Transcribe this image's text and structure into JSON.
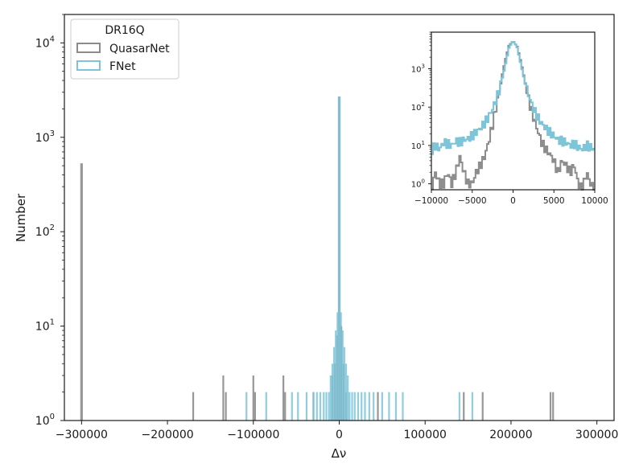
{
  "chart_data": [
    {
      "type": "histogram",
      "panel": "main",
      "xlabel": "Δν",
      "ylabel": "Number",
      "xlim": [
        -320000,
        320000
      ],
      "ylim": [
        1,
        20000
      ],
      "yscale": "log",
      "grid": false,
      "xticks": [
        -300000,
        -200000,
        -100000,
        0,
        100000,
        200000,
        300000
      ],
      "xtick_labels": [
        "−300000",
        "−200000",
        "−100000",
        "0",
        "100000",
        "200000",
        "300000"
      ],
      "yticks": [
        1,
        10,
        100,
        1000,
        10000
      ],
      "ytick_labels": [
        {
          "base": "10",
          "exp": "0"
        },
        {
          "base": "10",
          "exp": "1"
        },
        {
          "base": "10",
          "exp": "2"
        },
        {
          "base": "10",
          "exp": "3"
        },
        {
          "base": "10",
          "exp": "4"
        }
      ],
      "legend": {
        "title": "DR16Q",
        "placement": "upper left",
        "entries": [
          "QuasarNet",
          "FNet"
        ]
      },
      "series": [
        {
          "name": "QuasarNet",
          "color": "#8c8c8c",
          "bins": [
            {
              "x": -300000,
              "count": 530
            },
            {
              "x": -170000,
              "count": 2
            },
            {
              "x": -135000,
              "count": 3
            },
            {
              "x": -132000,
              "count": 2
            },
            {
              "x": -100000,
              "count": 3
            },
            {
              "x": -98000,
              "count": 2
            },
            {
              "x": -65000,
              "count": 3
            },
            {
              "x": -63000,
              "count": 2
            },
            {
              "x": -30000,
              "count": 2
            },
            {
              "x": -8000,
              "count": 3
            },
            {
              "x": -5000,
              "count": 4
            },
            {
              "x": -2500,
              "count": 8
            },
            {
              "x": 0,
              "count": 2700
            },
            {
              "x": 2500,
              "count": 10
            },
            {
              "x": 5000,
              "count": 4
            },
            {
              "x": 8000,
              "count": 2
            },
            {
              "x": 45000,
              "count": 2
            },
            {
              "x": 145000,
              "count": 2
            },
            {
              "x": 167000,
              "count": 2
            },
            {
              "x": 246000,
              "count": 2
            },
            {
              "x": 249000,
              "count": 2
            }
          ]
        },
        {
          "name": "FNet",
          "color": "#7cc4d8",
          "bins": [
            {
              "x": -108000,
              "count": 2
            },
            {
              "x": -85000,
              "count": 2
            },
            {
              "x": -55000,
              "count": 2
            },
            {
              "x": -48000,
              "count": 2
            },
            {
              "x": -38000,
              "count": 2
            },
            {
              "x": -30000,
              "count": 2
            },
            {
              "x": -26000,
              "count": 2
            },
            {
              "x": -22000,
              "count": 2
            },
            {
              "x": -18000,
              "count": 2
            },
            {
              "x": -15000,
              "count": 2
            },
            {
              "x": -12000,
              "count": 2
            },
            {
              "x": -10000,
              "count": 3
            },
            {
              "x": -8000,
              "count": 4
            },
            {
              "x": -6000,
              "count": 6
            },
            {
              "x": -4000,
              "count": 9
            },
            {
              "x": -2000,
              "count": 14
            },
            {
              "x": 0,
              "count": 2700
            },
            {
              "x": 2000,
              "count": 14
            },
            {
              "x": 4000,
              "count": 9
            },
            {
              "x": 6000,
              "count": 6
            },
            {
              "x": 8000,
              "count": 4
            },
            {
              "x": 10000,
              "count": 3
            },
            {
              "x": 12000,
              "count": 2
            },
            {
              "x": 15000,
              "count": 2
            },
            {
              "x": 18000,
              "count": 2
            },
            {
              "x": 22000,
              "count": 2
            },
            {
              "x": 26000,
              "count": 2
            },
            {
              "x": 30000,
              "count": 2
            },
            {
              "x": 35000,
              "count": 2
            },
            {
              "x": 40000,
              "count": 2
            },
            {
              "x": 50000,
              "count": 2
            },
            {
              "x": 58000,
              "count": 2
            },
            {
              "x": 66000,
              "count": 2
            },
            {
              "x": 74000,
              "count": 2
            },
            {
              "x": 140000,
              "count": 2
            },
            {
              "x": 155000,
              "count": 2
            }
          ]
        }
      ]
    },
    {
      "type": "histogram",
      "panel": "inset",
      "xlim": [
        -10000,
        10000
      ],
      "ylim": [
        0.7,
        9000
      ],
      "yscale": "log",
      "grid": false,
      "xticks": [
        -10000,
        -5000,
        0,
        5000,
        10000
      ],
      "xtick_labels": [
        "−10000",
        "−5000",
        "0",
        "5000",
        "10000"
      ],
      "yticks": [
        1,
        10,
        100,
        1000
      ],
      "ytick_labels": [
        {
          "base": "10",
          "exp": "0"
        },
        {
          "base": "10",
          "exp": "1"
        },
        {
          "base": "10",
          "exp": "2"
        },
        {
          "base": "10",
          "exp": "3"
        }
      ],
      "bin_width": 200,
      "series": [
        {
          "name": "QuasarNet",
          "color": "#8c8c8c",
          "x": [
            -10000,
            -9500,
            -9000,
            -8500,
            -8000,
            -7500,
            -7000,
            -6500,
            -6000,
            -5500,
            -5000,
            -4500,
            -4000,
            -3500,
            -3000,
            -2500,
            -2000,
            -1500,
            -1000,
            -500,
            0,
            500,
            1000,
            1500,
            2000,
            2500,
            3000,
            3500,
            4000,
            4500,
            5000,
            5500,
            6000,
            6500,
            7000,
            7500,
            8000,
            8500,
            9000,
            9500,
            10000
          ],
          "y": [
            0.7,
            2,
            1,
            1,
            2,
            1,
            2,
            5,
            2,
            1,
            1,
            2,
            3,
            5,
            12,
            35,
            120,
            450,
            1500,
            4000,
            5200,
            3800,
            1400,
            420,
            130,
            55,
            25,
            12,
            8,
            6,
            4,
            2,
            4,
            3,
            2,
            3,
            1,
            0.7,
            2,
            1,
            0.7
          ]
        },
        {
          "name": "FNet",
          "color": "#7cc4d8",
          "x": [
            -10000,
            -9500,
            -9000,
            -8500,
            -8000,
            -7500,
            -7000,
            -6500,
            -6000,
            -5500,
            -5000,
            -4500,
            -4000,
            -3500,
            -3000,
            -2500,
            -2000,
            -1500,
            -1000,
            -500,
            0,
            500,
            1000,
            1500,
            2000,
            2500,
            3000,
            3500,
            4000,
            4500,
            5000,
            5500,
            6000,
            6500,
            7000,
            7500,
            8000,
            8500,
            9000,
            9500,
            10000
          ],
          "y": [
            7,
            10,
            8,
            12,
            11,
            10,
            13,
            12,
            14,
            15,
            18,
            22,
            28,
            38,
            55,
            90,
            170,
            380,
            1100,
            3500,
            5500,
            3600,
            1200,
            400,
            180,
            90,
            55,
            38,
            28,
            22,
            18,
            14,
            13,
            12,
            10,
            11,
            9,
            8,
            10,
            9,
            8
          ]
        }
      ]
    }
  ]
}
